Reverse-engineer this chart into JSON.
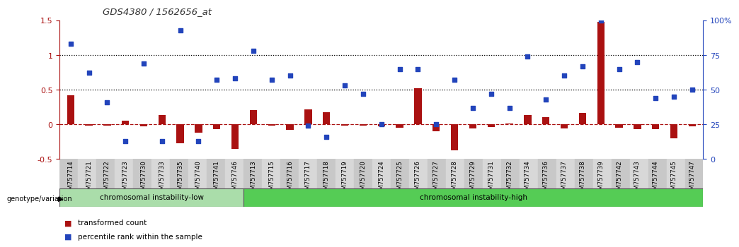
{
  "title": "GDS4380 / 1562656_at",
  "samples": [
    "GSM757714",
    "GSM757721",
    "GSM757722",
    "GSM757723",
    "GSM757730",
    "GSM757733",
    "GSM757735",
    "GSM757740",
    "GSM757741",
    "GSM757746",
    "GSM757713",
    "GSM757715",
    "GSM757716",
    "GSM757717",
    "GSM757718",
    "GSM757719",
    "GSM757720",
    "GSM757724",
    "GSM757725",
    "GSM757726",
    "GSM757727",
    "GSM757728",
    "GSM757729",
    "GSM757731",
    "GSM757732",
    "GSM757734",
    "GSM757736",
    "GSM757737",
    "GSM757738",
    "GSM757739",
    "GSM757742",
    "GSM757743",
    "GSM757744",
    "GSM757745",
    "GSM757747"
  ],
  "red_values": [
    0.42,
    -0.02,
    -0.02,
    0.05,
    -0.03,
    0.13,
    -0.27,
    -0.12,
    -0.07,
    -0.35,
    0.21,
    -0.02,
    -0.08,
    0.22,
    0.17,
    -0.02,
    -0.02,
    -0.03,
    -0.05,
    0.52,
    -0.1,
    -0.38,
    -0.06,
    -0.04,
    0.01,
    0.13,
    0.1,
    -0.06,
    0.16,
    1.48,
    -0.05,
    -0.07,
    -0.07,
    -0.2,
    -0.03
  ],
  "blue_values_pct": [
    83,
    62,
    41,
    13,
    69,
    13,
    93,
    13,
    57,
    58,
    78,
    57,
    60,
    24,
    16,
    53,
    47,
    25,
    65,
    65,
    25,
    57,
    37,
    47,
    37,
    74,
    43,
    60,
    67,
    100,
    65,
    70,
    44,
    45,
    50
  ],
  "low_count": 10,
  "high_count": 25,
  "group_low_label": "chromosomal instability-low",
  "group_high_label": "chromosomal instability-high",
  "genotype_label": "genotype/variation",
  "legend_red": "transformed count",
  "legend_blue": "percentile rank within the sample",
  "ylim_left": [
    -0.5,
    1.5
  ],
  "ylim_right": [
    0,
    100
  ],
  "left_yticks": [
    -0.5,
    0.0,
    0.5,
    1.0,
    1.5
  ],
  "left_ytick_labels": [
    "-0.5",
    "0",
    "0.5",
    "1",
    "1.5"
  ],
  "right_ticks": [
    0,
    25,
    50,
    75,
    100
  ],
  "right_tick_labels": [
    "0",
    "25",
    "50",
    "75",
    "100%"
  ],
  "hlines_dotted": [
    0.5,
    1.0
  ],
  "bar_color": "#aa1111",
  "dot_color": "#2244bb",
  "low_group_color": "#aaddaa",
  "high_group_color": "#55cc55"
}
